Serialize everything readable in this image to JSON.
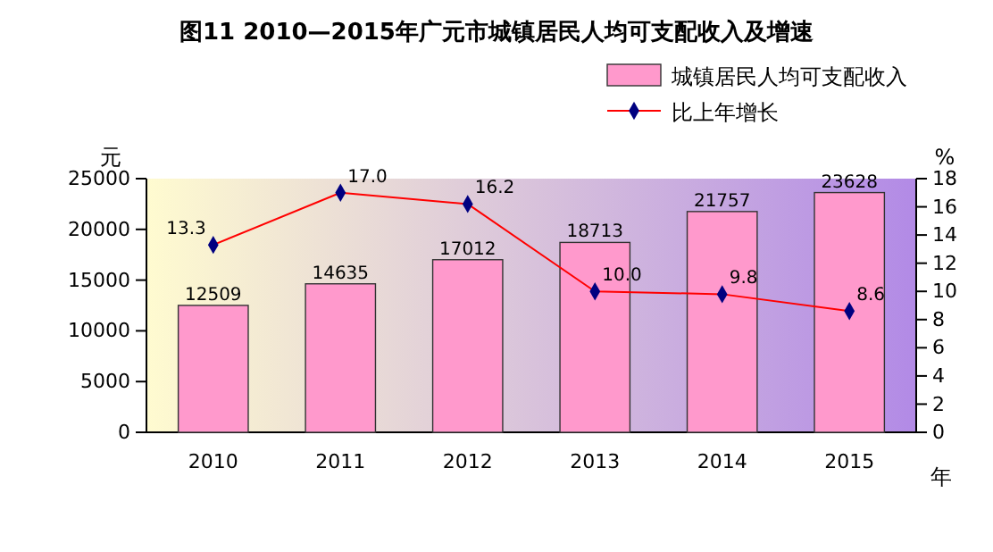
{
  "chart_data": {
    "type": "bar",
    "title": "图11  2010—2015年广元市城镇居民人均可支配收入及增速",
    "xlabel": "年",
    "ylabel": "元",
    "y2label": "%",
    "categories": [
      "2010",
      "2011",
      "2012",
      "2013",
      "2014",
      "2015"
    ],
    "series": [
      {
        "name": "城镇居民人均可支配收入",
        "color": "#ff99cc",
        "values": [
          12509,
          14635,
          17012,
          18713,
          21757,
          23628
        ]
      },
      {
        "name": "比上年增长",
        "type": "line",
        "axis": "y2",
        "color": "#ff0000",
        "marker": "diamond",
        "values": [
          13.3,
          17.0,
          16.2,
          10.0,
          9.8,
          8.6
        ],
        "value_labels": [
          "13.3",
          "17.0",
          "16.2",
          "10.0",
          "9.8",
          "8.6"
        ]
      }
    ],
    "ylim": [
      0,
      25000
    ],
    "yticks": [
      0,
      5000,
      10000,
      15000,
      20000,
      25000
    ],
    "y2lim": [
      0,
      18
    ],
    "y2ticks": [
      0,
      2,
      4,
      6,
      8,
      10,
      12,
      14,
      16,
      18
    ],
    "data_labels": true,
    "legend": "top right"
  }
}
